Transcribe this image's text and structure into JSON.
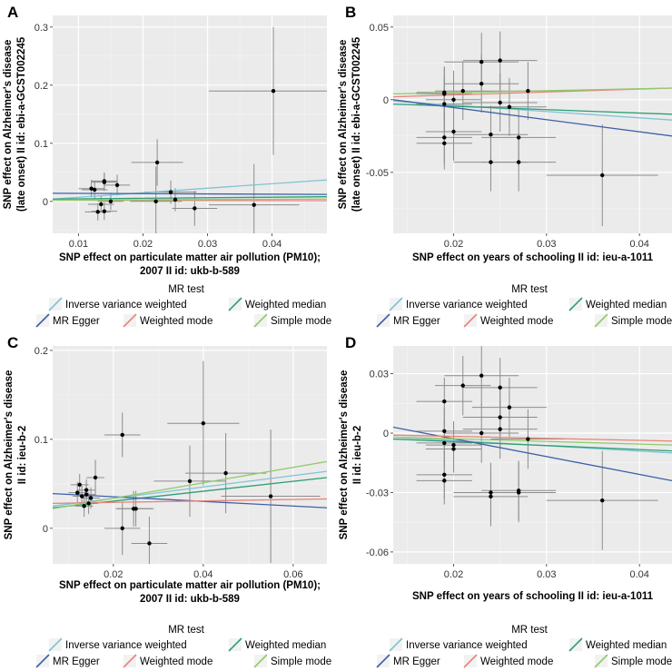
{
  "legend": {
    "title": "MR test",
    "items": [
      {
        "label": "Inverse variance weighted",
        "color": "#7FC3D6"
      },
      {
        "label": "Weighted median",
        "color": "#2C9E74"
      },
      {
        "label": "MR Egger",
        "color": "#3E60A8"
      },
      {
        "label": "Weighted mode",
        "color": "#E8837A"
      },
      {
        "label": "Simple mode",
        "color": "#8FCB6A"
      }
    ]
  },
  "chart_data": [
    {
      "type": "scatter",
      "panel": "A",
      "xlabel": [
        "SNP effect on particulate matter air pollution (PM10);",
        "2007 II id: ukb-b-589"
      ],
      "ylabel": [
        "SNP effect on Alzheimer's disease",
        "(late onset) II id: ebi-a-GCST002245"
      ],
      "xlim": [
        0.006,
        0.0485
      ],
      "ylim": [
        -0.055,
        0.32
      ],
      "xticks": [
        0.01,
        0.02,
        0.03,
        0.04
      ],
      "xtick_labels": [
        "0.01",
        "0.02",
        "0.03",
        "0.04"
      ],
      "yticks": [
        0,
        0.1,
        0.2,
        0.3
      ],
      "ytick_labels": [
        "0",
        "0.1",
        "0.2",
        "0.3"
      ],
      "points": [
        {
          "x": 0.012,
          "y": 0.022,
          "xerr": 0.002,
          "yerr": 0.015
        },
        {
          "x": 0.0125,
          "y": 0.02,
          "xerr": 0.002,
          "yerr": 0.015
        },
        {
          "x": 0.013,
          "y": -0.018,
          "xerr": 0.002,
          "yerr": 0.015
        },
        {
          "x": 0.0135,
          "y": -0.005,
          "xerr": 0.002,
          "yerr": 0.015
        },
        {
          "x": 0.014,
          "y": 0.035,
          "xerr": 0.002,
          "yerr": 0.015
        },
        {
          "x": 0.014,
          "y": 0.033,
          "xerr": 0.002,
          "yerr": 0.015
        },
        {
          "x": 0.014,
          "y": -0.017,
          "xerr": 0.002,
          "yerr": 0.015
        },
        {
          "x": 0.015,
          "y": 0.0,
          "xerr": 0.002,
          "yerr": 0.015
        },
        {
          "x": 0.016,
          "y": 0.028,
          "xerr": 0.002,
          "yerr": 0.018
        },
        {
          "x": 0.0222,
          "y": 0.067,
          "xerr": 0.004,
          "yerr": 0.04
        },
        {
          "x": 0.022,
          "y": 0.0,
          "xerr": 0.004,
          "yerr": 0.06
        },
        {
          "x": 0.0243,
          "y": 0.016,
          "xerr": 0.004,
          "yerr": 0.02
        },
        {
          "x": 0.025,
          "y": 0.003,
          "xerr": 0.004,
          "yerr": 0.02
        },
        {
          "x": 0.028,
          "y": -0.012,
          "xerr": 0.0035,
          "yerr": 0.03
        },
        {
          "x": 0.0372,
          "y": -0.006,
          "xerr": 0.007,
          "yerr": 0.07
        },
        {
          "x": 0.0402,
          "y": 0.19,
          "xerr": 0.01,
          "yerr": 0.11
        }
      ],
      "lines": [
        {
          "series": "Inverse variance weighted",
          "x": [
            0.006,
            0.0485
          ],
          "y": [
            0.004,
            0.037
          ]
        },
        {
          "series": "Weighted median",
          "x": [
            0.006,
            0.0485
          ],
          "y": [
            0.004,
            0.008
          ]
        },
        {
          "series": "MR Egger",
          "x": [
            0.006,
            0.0485
          ],
          "y": [
            0.014,
            0.012
          ]
        },
        {
          "series": "Weighted mode",
          "x": [
            0.006,
            0.0485
          ],
          "y": [
            0.002,
            0.001
          ]
        },
        {
          "series": "Simple mode",
          "x": [
            0.006,
            0.0485
          ],
          "y": [
            0.002,
            0.004
          ]
        }
      ]
    },
    {
      "type": "scatter",
      "panel": "B",
      "xlabel": [
        "SNP effect on years of schooling II id: ieu-a-1011"
      ],
      "ylabel": [
        "SNP effect on Alzheimer's disease",
        "(late onset) II id: ebi-a-GCST002245"
      ],
      "xlim": [
        0.0135,
        0.0435
      ],
      "ylim": [
        -0.092,
        0.058
      ],
      "xticks": [
        0.02,
        0.03,
        0.04
      ],
      "xtick_labels": [
        "0.02",
        "0.03",
        "0.04"
      ],
      "yticks": [
        -0.05,
        0,
        0.05
      ],
      "ytick_labels": [
        "-0.05",
        "0",
        "0.05"
      ],
      "points": [
        {
          "x": 0.019,
          "y": 0.005,
          "xerr": 0.003,
          "yerr": 0.018
        },
        {
          "x": 0.019,
          "y": 0.004,
          "xerr": 0.003,
          "yerr": 0.018
        },
        {
          "x": 0.019,
          "y": -0.003,
          "xerr": 0.003,
          "yerr": 0.018
        },
        {
          "x": 0.019,
          "y": -0.026,
          "xerr": 0.003,
          "yerr": 0.018
        },
        {
          "x": 0.019,
          "y": -0.03,
          "xerr": 0.003,
          "yerr": 0.018
        },
        {
          "x": 0.02,
          "y": 0.0,
          "xerr": 0.003,
          "yerr": 0.02
        },
        {
          "x": 0.02,
          "y": -0.022,
          "xerr": 0.003,
          "yerr": 0.02
        },
        {
          "x": 0.021,
          "y": 0.006,
          "xerr": 0.003,
          "yerr": 0.02
        },
        {
          "x": 0.023,
          "y": 0.026,
          "xerr": 0.004,
          "yerr": 0.02
        },
        {
          "x": 0.023,
          "y": 0.011,
          "xerr": 0.004,
          "yerr": 0.02
        },
        {
          "x": 0.024,
          "y": -0.024,
          "xerr": 0.004,
          "yerr": 0.02
        },
        {
          "x": 0.024,
          "y": -0.043,
          "xerr": 0.004,
          "yerr": 0.02
        },
        {
          "x": 0.025,
          "y": 0.027,
          "xerr": 0.004,
          "yerr": 0.02
        },
        {
          "x": 0.025,
          "y": -0.002,
          "xerr": 0.004,
          "yerr": 0.02
        },
        {
          "x": 0.026,
          "y": -0.005,
          "xerr": 0.004,
          "yerr": 0.02
        },
        {
          "x": 0.027,
          "y": -0.026,
          "xerr": 0.004,
          "yerr": 0.02
        },
        {
          "x": 0.027,
          "y": -0.043,
          "xerr": 0.004,
          "yerr": 0.02
        },
        {
          "x": 0.028,
          "y": 0.006,
          "xerr": 0.004,
          "yerr": 0.02
        },
        {
          "x": 0.036,
          "y": -0.052,
          "xerr": 0.006,
          "yerr": 0.035
        }
      ],
      "lines": [
        {
          "series": "Inverse variance weighted",
          "x": [
            0.0135,
            0.0435
          ],
          "y": [
            -0.001,
            -0.014
          ]
        },
        {
          "series": "Weighted median",
          "x": [
            0.0135,
            0.0435
          ],
          "y": [
            -0.003,
            -0.01
          ]
        },
        {
          "series": "MR Egger",
          "x": [
            0.0135,
            0.0435
          ],
          "y": [
            0.0,
            -0.025
          ]
        },
        {
          "series": "Weighted mode",
          "x": [
            0.0135,
            0.0435
          ],
          "y": [
            0.002,
            0.008
          ]
        },
        {
          "series": "Simple mode",
          "x": [
            0.0135,
            0.0435
          ],
          "y": [
            0.004,
            0.008
          ]
        }
      ]
    },
    {
      "type": "scatter",
      "panel": "C",
      "xlabel": [
        "SNP effect on particulate matter air pollution (PM10);",
        "2007 II id: ukb-b-589"
      ],
      "ylabel": [
        "SNP effect on Alzheimer's disease",
        "II id: ieu-b-2"
      ],
      "xlim": [
        0.0065,
        0.0675
      ],
      "ylim": [
        -0.04,
        0.205
      ],
      "xticks": [
        0.02,
        0.04,
        0.06
      ],
      "xtick_labels": [
        "0.02",
        "0.04",
        "0.06"
      ],
      "yticks": [
        0,
        0.1,
        0.2
      ],
      "ytick_labels": [
        "0",
        "0.1",
        "0.2"
      ],
      "points": [
        {
          "x": 0.012,
          "y": 0.04,
          "xerr": 0.002,
          "yerr": 0.012
        },
        {
          "x": 0.0125,
          "y": 0.049,
          "xerr": 0.002,
          "yerr": 0.012
        },
        {
          "x": 0.013,
          "y": 0.036,
          "xerr": 0.002,
          "yerr": 0.012
        },
        {
          "x": 0.0135,
          "y": 0.025,
          "xerr": 0.002,
          "yerr": 0.012
        },
        {
          "x": 0.014,
          "y": 0.043,
          "xerr": 0.002,
          "yerr": 0.012
        },
        {
          "x": 0.014,
          "y": 0.038,
          "xerr": 0.002,
          "yerr": 0.012
        },
        {
          "x": 0.0145,
          "y": 0.028,
          "xerr": 0.002,
          "yerr": 0.012
        },
        {
          "x": 0.015,
          "y": 0.034,
          "xerr": 0.002,
          "yerr": 0.012
        },
        {
          "x": 0.016,
          "y": 0.057,
          "xerr": 0.002,
          "yerr": 0.02
        },
        {
          "x": 0.022,
          "y": 0.105,
          "xerr": 0.004,
          "yerr": 0.025
        },
        {
          "x": 0.022,
          "y": 0.0,
          "xerr": 0.004,
          "yerr": 0.03
        },
        {
          "x": 0.0245,
          "y": 0.022,
          "xerr": 0.004,
          "yerr": 0.02
        },
        {
          "x": 0.025,
          "y": 0.022,
          "xerr": 0.004,
          "yerr": 0.02
        },
        {
          "x": 0.028,
          "y": -0.017,
          "xerr": 0.004,
          "yerr": 0.03
        },
        {
          "x": 0.037,
          "y": 0.053,
          "xerr": 0.008,
          "yerr": 0.04
        },
        {
          "x": 0.04,
          "y": 0.118,
          "xerr": 0.008,
          "yerr": 0.07
        },
        {
          "x": 0.045,
          "y": 0.062,
          "xerr": 0.009,
          "yerr": 0.045
        },
        {
          "x": 0.055,
          "y": 0.036,
          "xerr": 0.011,
          "yerr": 0.075
        }
      ],
      "lines": [
        {
          "series": "Inverse variance weighted",
          "x": [
            0.0065,
            0.0675
          ],
          "y": [
            0.025,
            0.064
          ]
        },
        {
          "series": "Weighted median",
          "x": [
            0.0065,
            0.0675
          ],
          "y": [
            0.023,
            0.057
          ]
        },
        {
          "series": "MR Egger",
          "x": [
            0.0065,
            0.0675
          ],
          "y": [
            0.039,
            0.023
          ]
        },
        {
          "series": "Weighted mode",
          "x": [
            0.0065,
            0.0675
          ],
          "y": [
            0.028,
            0.033
          ]
        },
        {
          "series": "Simple mode",
          "x": [
            0.0065,
            0.0675
          ],
          "y": [
            0.022,
            0.075
          ]
        }
      ]
    },
    {
      "type": "scatter",
      "panel": "D",
      "xlabel": [
        "SNP effect on years of schooling II id: ieu-a-1011"
      ],
      "ylabel": [
        "SNP effect on Alzheimer's disease",
        "II id: ieu-b-2"
      ],
      "xlim": [
        0.0135,
        0.0435
      ],
      "ylim": [
        -0.066,
        0.044
      ],
      "xticks": [
        0.02,
        0.03,
        0.04
      ],
      "xtick_labels": [
        "0.02",
        "0.03",
        "0.04"
      ],
      "yticks": [
        -0.06,
        -0.03,
        0,
        0.03
      ],
      "ytick_labels": [
        "-0.06",
        "-0.03",
        "0",
        "0.03"
      ],
      "points": [
        {
          "x": 0.019,
          "y": 0.016,
          "xerr": 0.003,
          "yerr": 0.012
        },
        {
          "x": 0.019,
          "y": 0.001,
          "xerr": 0.003,
          "yerr": 0.012
        },
        {
          "x": 0.019,
          "y": -0.005,
          "xerr": 0.003,
          "yerr": 0.012
        },
        {
          "x": 0.019,
          "y": -0.021,
          "xerr": 0.003,
          "yerr": 0.012
        },
        {
          "x": 0.019,
          "y": -0.024,
          "xerr": 0.003,
          "yerr": 0.012
        },
        {
          "x": 0.02,
          "y": -0.006,
          "xerr": 0.003,
          "yerr": 0.012
        },
        {
          "x": 0.02,
          "y": -0.008,
          "xerr": 0.003,
          "yerr": 0.012
        },
        {
          "x": 0.021,
          "y": 0.024,
          "xerr": 0.003,
          "yerr": 0.015
        },
        {
          "x": 0.023,
          "y": 0.029,
          "xerr": 0.004,
          "yerr": 0.015
        },
        {
          "x": 0.023,
          "y": 0.0,
          "xerr": 0.004,
          "yerr": 0.015
        },
        {
          "x": 0.024,
          "y": -0.03,
          "xerr": 0.004,
          "yerr": 0.015
        },
        {
          "x": 0.024,
          "y": -0.032,
          "xerr": 0.004,
          "yerr": 0.015
        },
        {
          "x": 0.025,
          "y": 0.023,
          "xerr": 0.004,
          "yerr": 0.015
        },
        {
          "x": 0.025,
          "y": 0.008,
          "xerr": 0.004,
          "yerr": 0.015
        },
        {
          "x": 0.025,
          "y": 0.002,
          "xerr": 0.004,
          "yerr": 0.015
        },
        {
          "x": 0.026,
          "y": 0.013,
          "xerr": 0.004,
          "yerr": 0.015
        },
        {
          "x": 0.027,
          "y": -0.029,
          "xerr": 0.004,
          "yerr": 0.015
        },
        {
          "x": 0.027,
          "y": -0.03,
          "xerr": 0.004,
          "yerr": 0.015
        },
        {
          "x": 0.028,
          "y": -0.003,
          "xerr": 0.004,
          "yerr": 0.015
        },
        {
          "x": 0.036,
          "y": -0.034,
          "xerr": 0.006,
          "yerr": 0.025
        }
      ],
      "lines": [
        {
          "series": "Inverse variance weighted",
          "x": [
            0.0135,
            0.0435
          ],
          "y": [
            -0.002,
            -0.01
          ]
        },
        {
          "series": "Weighted median",
          "x": [
            0.0135,
            0.0435
          ],
          "y": [
            -0.003,
            -0.009
          ]
        },
        {
          "series": "MR Egger",
          "x": [
            0.0135,
            0.0435
          ],
          "y": [
            0.003,
            -0.024
          ]
        },
        {
          "series": "Weighted mode",
          "x": [
            0.0135,
            0.0435
          ],
          "y": [
            -0.001,
            -0.004
          ]
        },
        {
          "series": "Simple mode",
          "x": [
            0.0135,
            0.0435
          ],
          "y": [
            -0.002,
            -0.006
          ]
        }
      ]
    }
  ]
}
